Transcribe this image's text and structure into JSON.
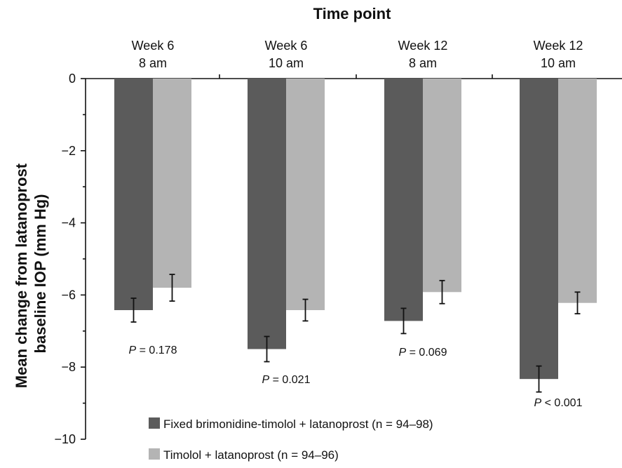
{
  "chart_data": {
    "type": "bar",
    "title": "Time point",
    "ylabel_lines": [
      "Mean change from latanoprost",
      "baseline IOP (mm Hg)"
    ],
    "xlabel": "",
    "ylim": [
      -10,
      0
    ],
    "yticks": [
      0,
      -2,
      -4,
      -6,
      -8,
      -10
    ],
    "ytick_labels": [
      "0",
      "−2",
      "−4",
      "−6",
      "−8",
      "−10"
    ],
    "categories": [
      {
        "line1": "Week 6",
        "line2": "8 am"
      },
      {
        "line1": "Week 6",
        "line2": "10 am"
      },
      {
        "line1": "Week 12",
        "line2": "8 am"
      },
      {
        "line1": "Week 12",
        "line2": "10 am"
      }
    ],
    "series": [
      {
        "name": "Fixed brimonidine-timolol + latanoprost (n = 94–98)",
        "color": "#5b5b5b",
        "values": [
          -6.42,
          -7.5,
          -6.72,
          -8.33
        ],
        "errors": [
          0.33,
          0.35,
          0.35,
          0.36
        ]
      },
      {
        "name": "Timolol + latanoprost (n = 94–96)",
        "color": "#b4b4b4",
        "values": [
          -5.8,
          -6.42,
          -5.92,
          -6.22
        ],
        "errors": [
          0.37,
          0.3,
          0.32,
          0.3
        ]
      }
    ],
    "p_values": [
      {
        "label": "P",
        "text": " = 0.178"
      },
      {
        "label": "P",
        "text": " = 0.021"
      },
      {
        "label": "P",
        "text": " = 0.069"
      },
      {
        "label": "P",
        "text": " < 0.001"
      }
    ],
    "grid": false,
    "legend_position": "bottom"
  }
}
